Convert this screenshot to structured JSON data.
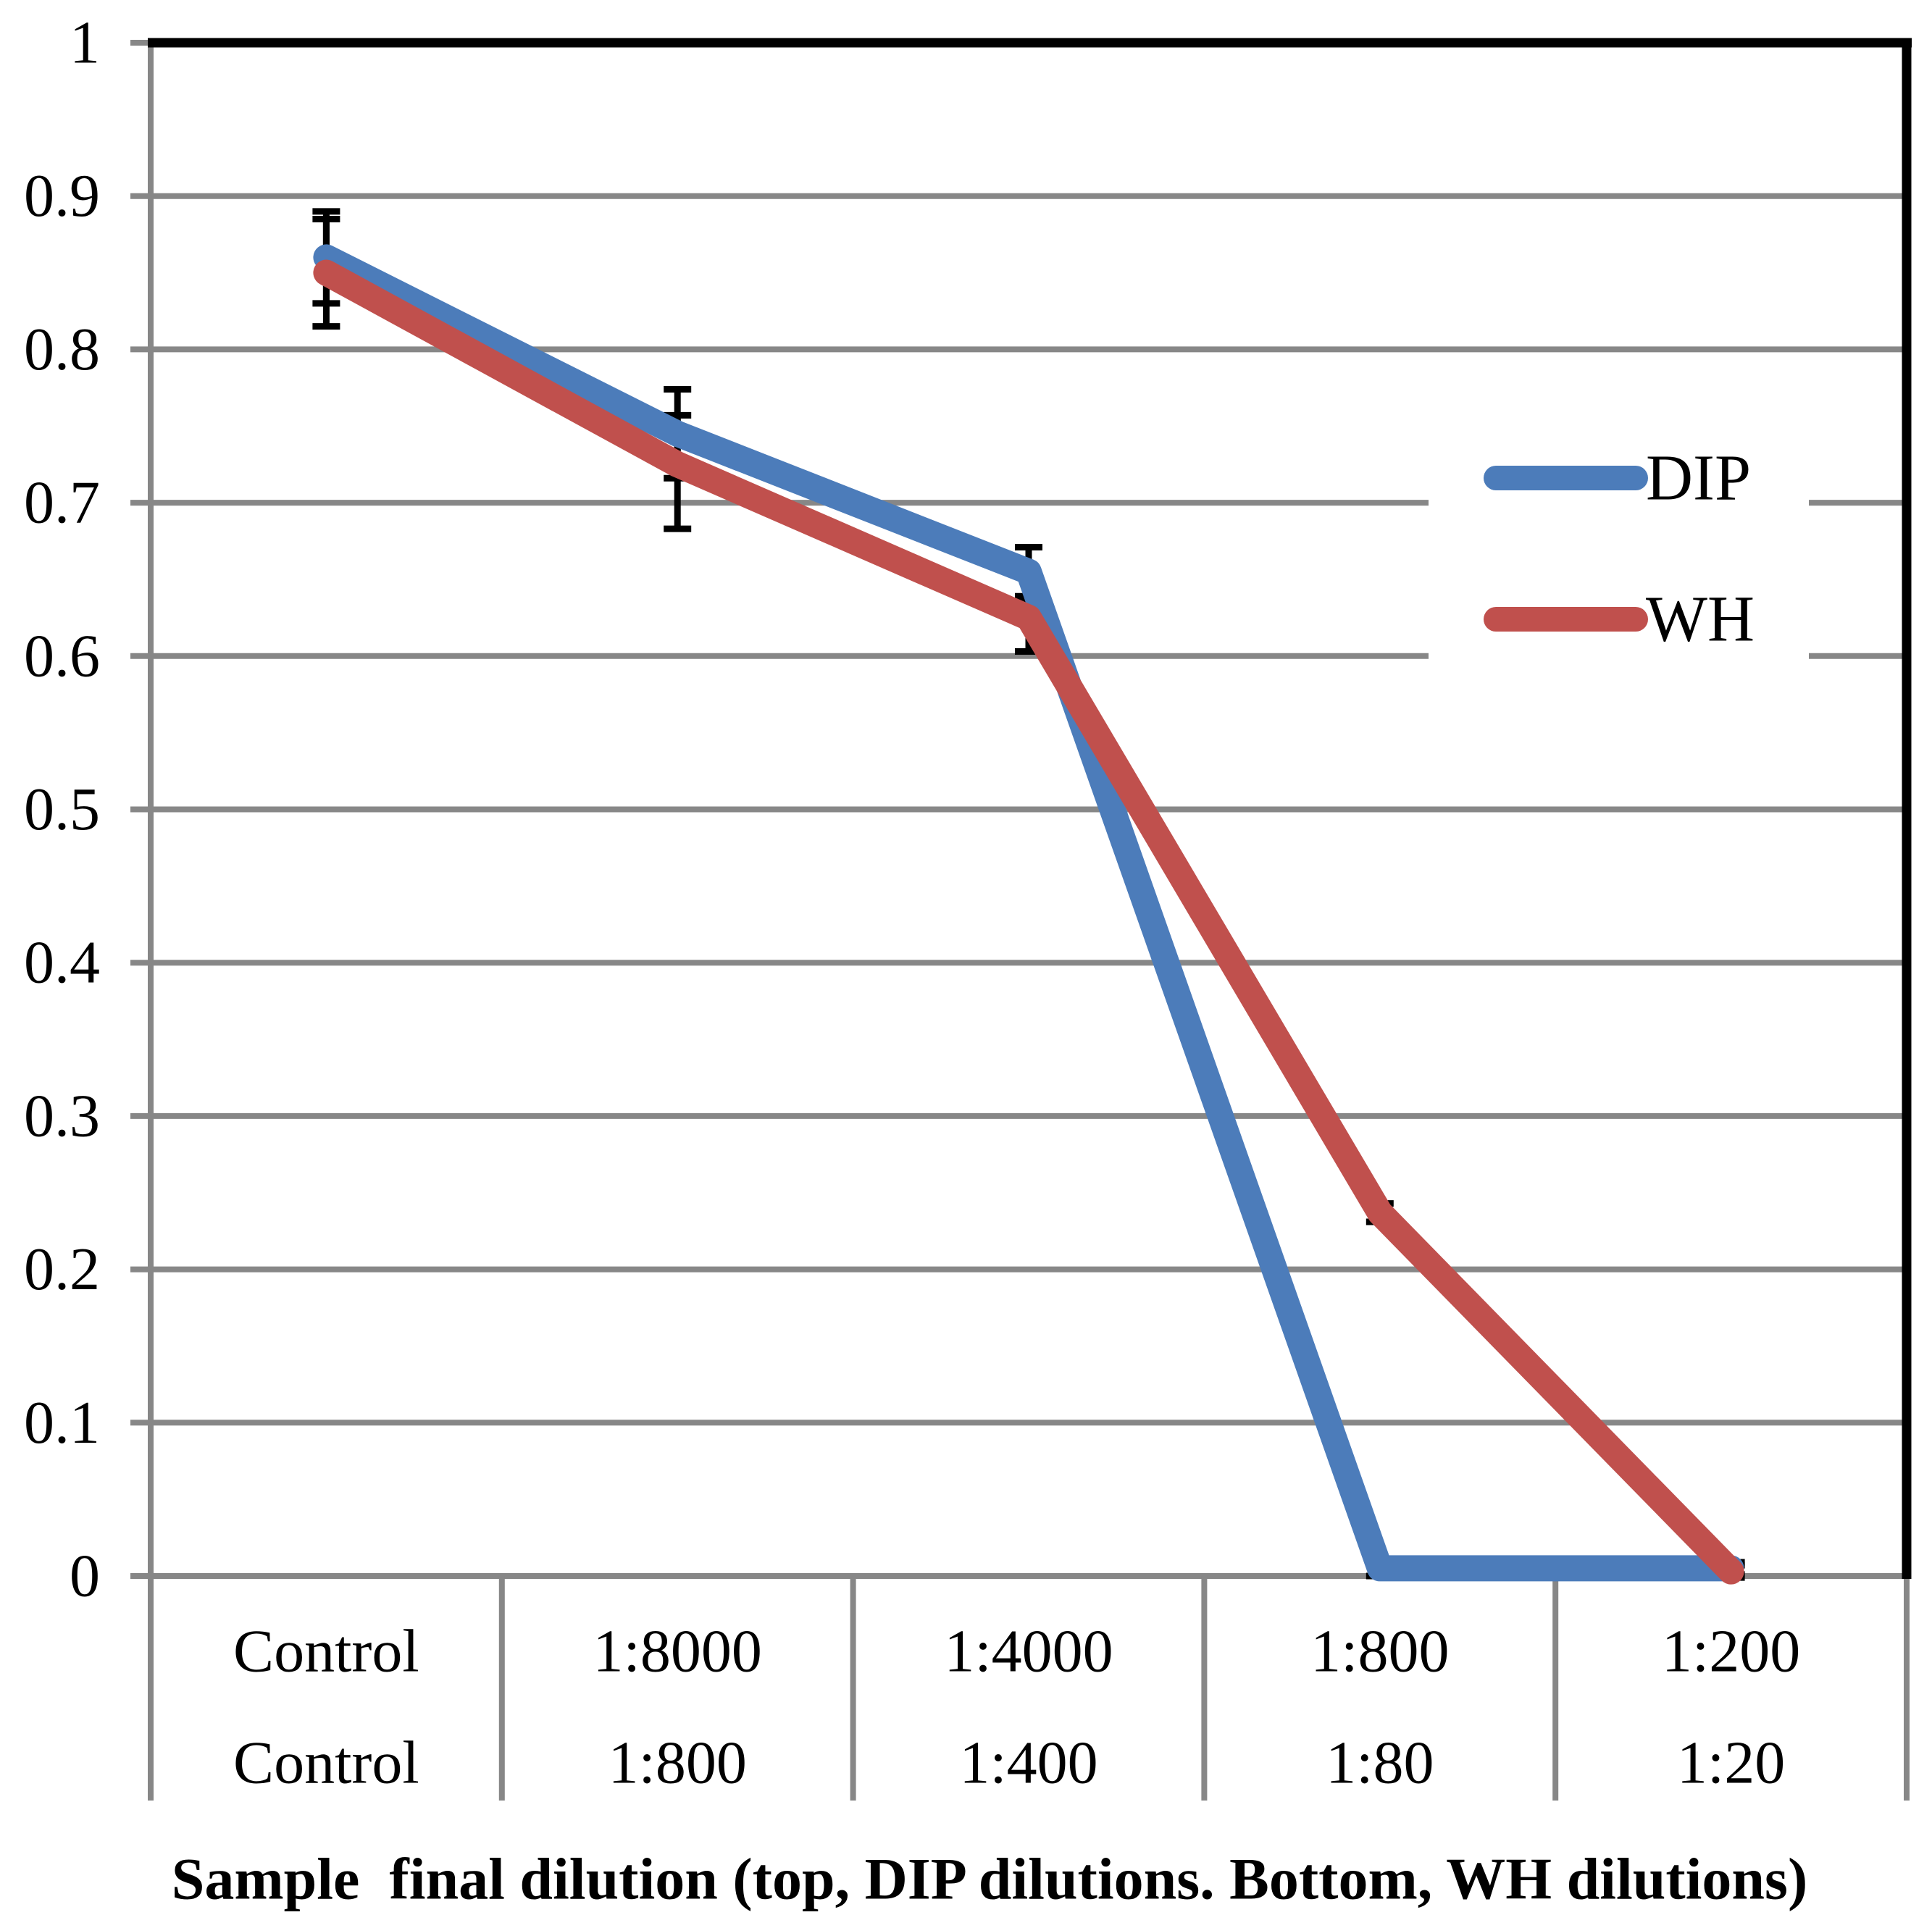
{
  "chart_data": {
    "type": "line",
    "title": "",
    "xlabel": "Sample  final dilution (top, DIP dilutions. Bottom, WH dilutions)",
    "ylabel": "",
    "ylim": [
      0,
      1
    ],
    "ytick_step": 0.1,
    "ytick_labels": [
      "0",
      "0.1",
      "0.2",
      "0.3",
      "0.4",
      "0.5",
      "0.6",
      "0.7",
      "0.8",
      "0.9",
      "1"
    ],
    "categories_row1": [
      "Control",
      "1:8000",
      "1:4000",
      "1:800",
      "1:200"
    ],
    "categories_row2": [
      "Control",
      "1:800",
      "1:400",
      "1:80",
      "1:20"
    ],
    "grid": "horizontal-only",
    "legend_position": "inside-right",
    "series": [
      {
        "name": "DIP",
        "color": "#4C7CBA",
        "values": [
          0.86,
          0.745,
          0.655,
          0.005,
          0.005
        ],
        "error_plus": [
          0.03,
          0.029,
          0.016,
          0.005,
          0.004
        ],
        "error_minus": [
          0.03,
          0.029,
          0.016,
          0.005,
          0.004
        ]
      },
      {
        "name": "WH",
        "color": "#C0504D",
        "values": [
          0.85,
          0.725,
          0.625,
          0.237,
          0.003
        ],
        "error_plus": [
          0.035,
          0.032,
          0.01,
          0.006,
          0.004
        ],
        "error_minus": [
          0.035,
          0.042,
          0.022,
          0.006,
          0.004
        ]
      }
    ]
  },
  "colors": {
    "background": "#FFFFFF",
    "gridline": "#878787",
    "axis": "#878787",
    "plot_border": "#000000",
    "error_bar": "#000000",
    "legend_background": "#FFFFFF",
    "text": "#000000"
  }
}
